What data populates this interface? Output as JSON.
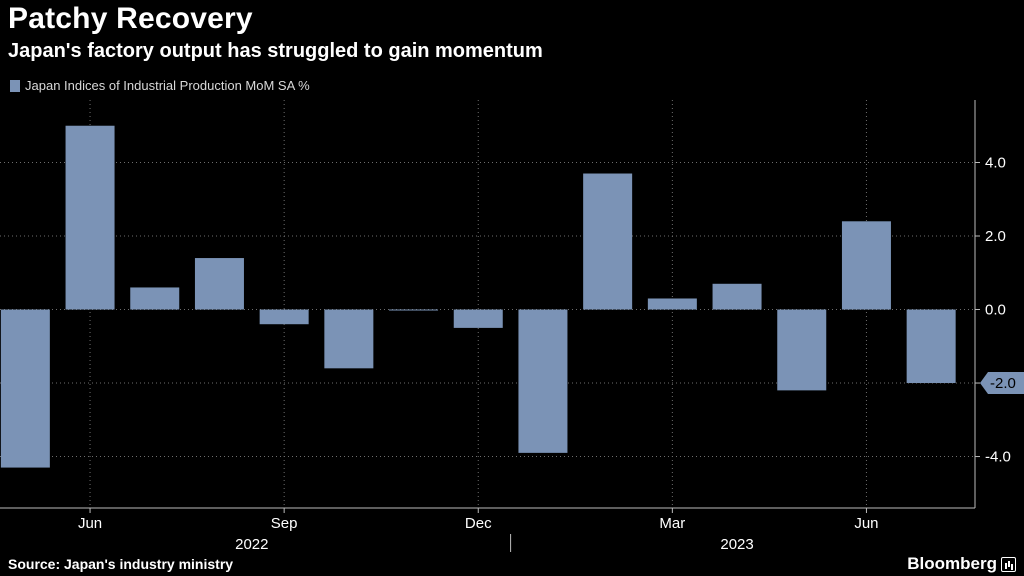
{
  "header": {
    "title": "Patchy Recovery",
    "subtitle": "Japan's factory output has struggled to gain momentum"
  },
  "legend": {
    "label": "Japan Indices of Industrial Production MoM SA %"
  },
  "footer": {
    "source": "Source: Japan's industry ministry",
    "brand": "Bloomberg"
  },
  "colors": {
    "bar": "#7b93b6",
    "background": "#000000",
    "grid": "#6e6e6e",
    "text": "#ffffff"
  },
  "chart_data": {
    "type": "bar",
    "categories": [
      "2022-05",
      "2022-06",
      "2022-07",
      "2022-08",
      "2022-09",
      "2022-10",
      "2022-11",
      "2022-12",
      "2023-01",
      "2023-02",
      "2023-03",
      "2023-04",
      "2023-05",
      "2023-06",
      "2023-07"
    ],
    "series": [
      {
        "values": [
          -4.3,
          5.0,
          0.6,
          1.4,
          -0.4,
          -1.6,
          0.0,
          -0.5,
          -3.9,
          3.7,
          0.3,
          0.7,
          -2.2,
          2.4,
          -2.0
        ]
      }
    ],
    "ylim": [
      -5.4,
      5.7
    ],
    "yticks": [
      -4.0,
      -2.0,
      0.0,
      2.0,
      4.0
    ],
    "ytick_labels": [
      "-4.0",
      "-2.0",
      "0.0",
      "2.0",
      "4.0"
    ],
    "xticks": [
      {
        "category": "2022-06",
        "label": "Jun"
      },
      {
        "category": "2022-09",
        "label": "Sep"
      },
      {
        "category": "2022-12",
        "label": "Dec"
      },
      {
        "category": "2023-03",
        "label": "Mar"
      },
      {
        "category": "2023-06",
        "label": "Jun"
      }
    ],
    "years": [
      {
        "label": "2022",
        "from": "2022-05",
        "to": "2022-12"
      },
      {
        "label": "2023",
        "from": "2023-01",
        "to": "2023-07"
      }
    ],
    "last_value_label": "-2.0",
    "grid": true,
    "yaxis_position": "right",
    "legend_position": "top-left"
  }
}
